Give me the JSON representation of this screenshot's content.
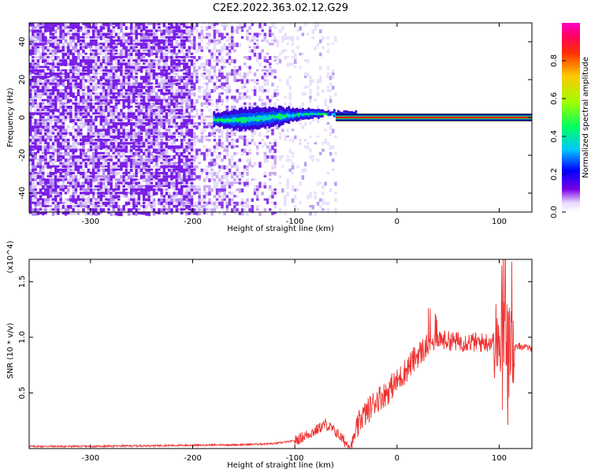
{
  "title": "C2E2.2022.363.02.12.G29",
  "chart_data": [
    {
      "type": "heatmap",
      "xlabel": "Height of straight line (km)",
      "ylabel": "Frequency (Hz)",
      "xlim": [
        -360,
        132
      ],
      "ylim": [
        -50,
        50
      ],
      "xticks": [
        -300,
        -200,
        -100,
        0,
        100
      ],
      "yticks": [
        -40,
        -20,
        0,
        20,
        40
      ],
      "grid": false,
      "colorbar": {
        "label": "Normalized spectral amplitude",
        "range": [
          0.0,
          1.0
        ],
        "ticks": [
          0.0,
          0.2,
          0.4,
          0.6,
          0.8
        ],
        "colormap": [
          "#ffffff",
          "#7a00e6",
          "#0000ff",
          "#00c8ff",
          "#00ff40",
          "#c8ff00",
          "#ffa000",
          "#ff0000",
          "#ff00c8"
        ]
      },
      "description_values": {
        "noise_region_x": [
          -360,
          -100
        ],
        "noise_fade_x": [
          -200,
          -60
        ],
        "signal_band_x": [
          -180,
          132
        ],
        "signal_center_frequency_hz": 0,
        "peak_amplitude": 1.0
      }
    },
    {
      "type": "line",
      "xlabel": "Height of straight line (km)",
      "ylabel": "SNR (10 * v/v)",
      "y_scale_label": "(x10^4)",
      "xlim": [
        -360,
        132
      ],
      "ylim": [
        0,
        1.7
      ],
      "xticks": [
        -300,
        -200,
        -100,
        0,
        100
      ],
      "yticks": [
        0.5,
        1.0,
        1.5
      ],
      "grid": false,
      "series": [
        {
          "color": "#ee3333",
          "x": [
            -360,
            -300,
            -250,
            -200,
            -150,
            -120,
            -100,
            -80,
            -70,
            -60,
            -50,
            -45,
            -40,
            -35,
            -30,
            -25,
            -20,
            -15,
            -10,
            -5,
            0,
            5,
            10,
            15,
            20,
            25,
            30,
            35,
            40,
            45,
            50,
            60,
            70,
            80,
            90,
            100,
            105,
            110,
            115,
            120,
            132
          ],
          "values": [
            0.02,
            0.02,
            0.025,
            0.03,
            0.035,
            0.045,
            0.07,
            0.16,
            0.22,
            0.15,
            0.05,
            0.03,
            0.15,
            0.28,
            0.32,
            0.38,
            0.44,
            0.47,
            0.5,
            0.56,
            0.6,
            0.66,
            0.72,
            0.78,
            0.84,
            0.88,
            0.92,
            0.95,
            1.0,
            0.98,
            0.97,
            0.96,
            0.96,
            0.95,
            0.96,
            0.97,
            1.05,
            0.95,
            0.9,
            0.92,
            0.9
          ]
        }
      ]
    }
  ]
}
